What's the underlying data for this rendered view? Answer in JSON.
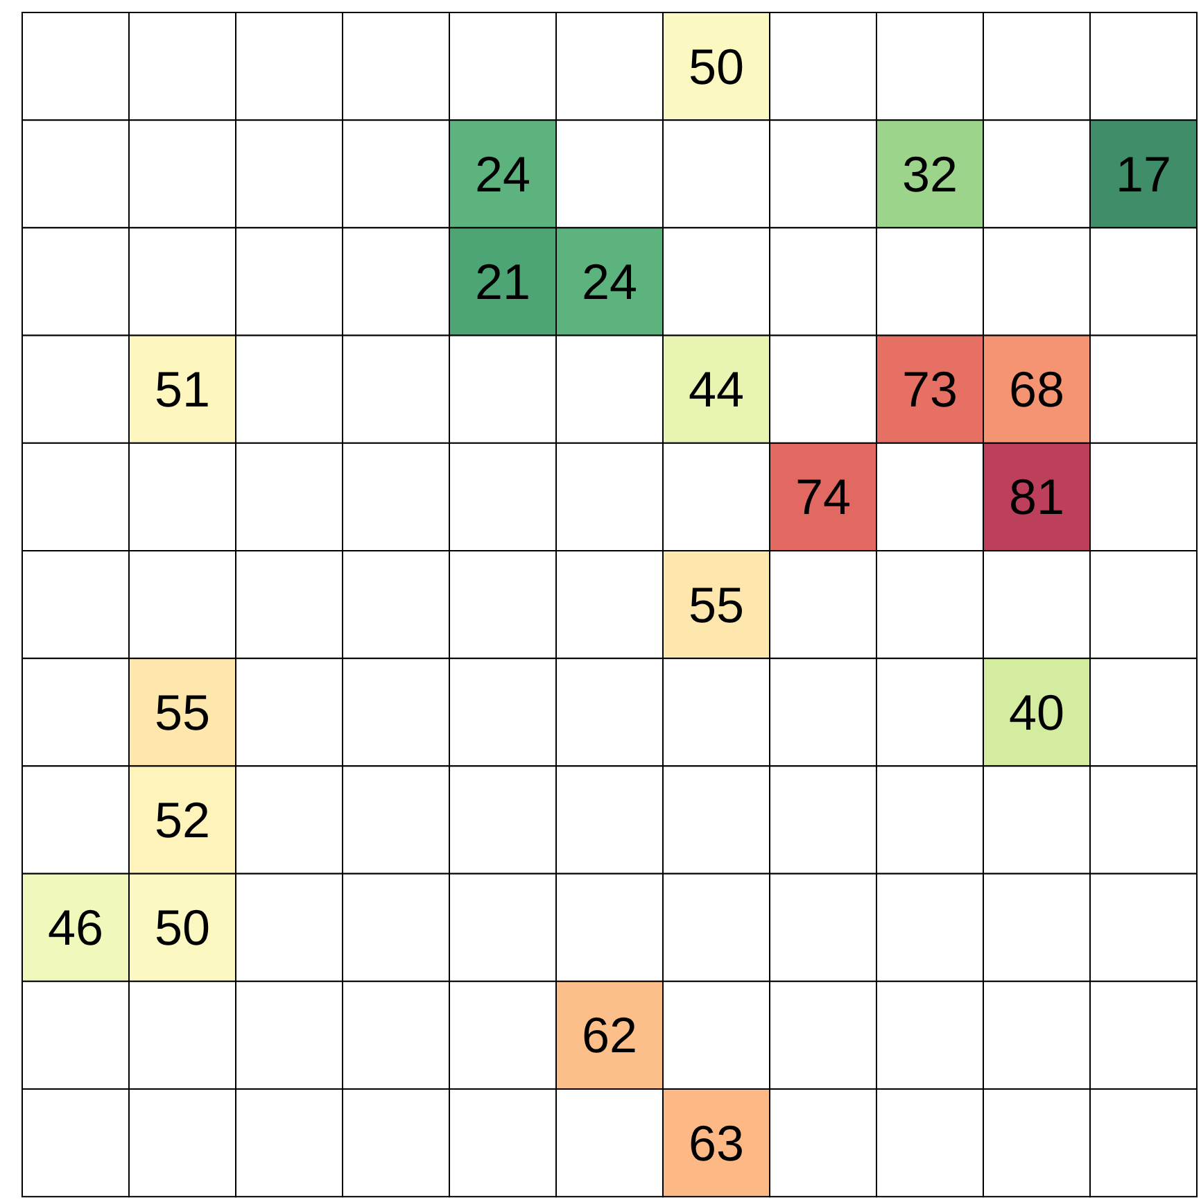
{
  "chart_data": {
    "type": "heatmap",
    "categories": [
      null,
      null,
      null,
      null,
      null,
      null,
      null,
      null,
      null,
      null,
      null
    ],
    "y_categories": [
      null,
      null,
      null,
      null,
      null,
      null,
      null,
      null,
      null,
      null,
      null
    ],
    "cells": [
      [
        null,
        null,
        null,
        null,
        null,
        null,
        50,
        null,
        null,
        null,
        null
      ],
      [
        null,
        null,
        null,
        null,
        24,
        null,
        null,
        null,
        32,
        null,
        17
      ],
      [
        null,
        null,
        null,
        null,
        21,
        24,
        null,
        null,
        null,
        null,
        null
      ],
      [
        null,
        51,
        null,
        null,
        null,
        null,
        44,
        null,
        73,
        68,
        null
      ],
      [
        null,
        null,
        null,
        null,
        null,
        null,
        null,
        74,
        null,
        81,
        null
      ],
      [
        null,
        null,
        null,
        null,
        null,
        null,
        55,
        null,
        null,
        null,
        null
      ],
      [
        null,
        55,
        null,
        null,
        null,
        null,
        null,
        null,
        null,
        40,
        null
      ],
      [
        null,
        52,
        null,
        null,
        null,
        null,
        null,
        null,
        null,
        null,
        null
      ],
      [
        46,
        50,
        null,
        null,
        null,
        null,
        null,
        null,
        null,
        null,
        null
      ],
      [
        null,
        null,
        null,
        null,
        null,
        62,
        null,
        null,
        null,
        null,
        null
      ],
      [
        null,
        null,
        null,
        null,
        null,
        null,
        63,
        null,
        null,
        null,
        null
      ]
    ],
    "data_labels": true
  }
}
